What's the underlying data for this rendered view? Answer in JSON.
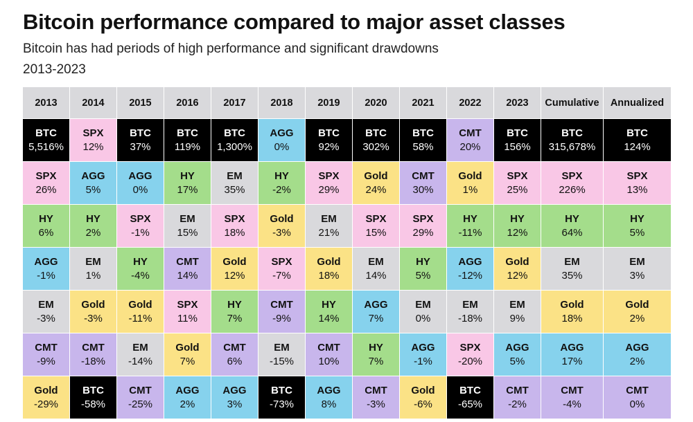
{
  "chart_data": {
    "type": "table",
    "title": "Bitcoin performance compared to major asset classes",
    "subtitle": "Bitcoin has had periods of high performance and significant drawdowns",
    "years_label": "2013-2023",
    "columns": [
      "2013",
      "2014",
      "2015",
      "2016",
      "2017",
      "2018",
      "2019",
      "2020",
      "2021",
      "2022",
      "2023",
      "Cumulative",
      "Annualized"
    ],
    "asset_colors": {
      "BTC": "#000000",
      "SPX": "#f9c7e6",
      "AGG": "#86d2ed",
      "HY": "#a4dd8b",
      "EM": "#d9d9dc",
      "Gold": "#fbe286",
      "CMT": "#c8b6ec"
    },
    "rows": [
      [
        [
          "BTC",
          "5,516%"
        ],
        [
          "SPX",
          "12%"
        ],
        [
          "BTC",
          "37%"
        ],
        [
          "BTC",
          "119%"
        ],
        [
          "BTC",
          "1,300%"
        ],
        [
          "AGG",
          "0%"
        ],
        [
          "BTC",
          "92%"
        ],
        [
          "BTC",
          "302%"
        ],
        [
          "BTC",
          "58%"
        ],
        [
          "CMT",
          "20%"
        ],
        [
          "BTC",
          "156%"
        ],
        [
          "BTC",
          "315,678%"
        ],
        [
          "BTC",
          "124%"
        ]
      ],
      [
        [
          "SPX",
          "26%"
        ],
        [
          "AGG",
          "5%"
        ],
        [
          "AGG",
          "0%"
        ],
        [
          "HY",
          "17%"
        ],
        [
          "EM",
          "35%"
        ],
        [
          "HY",
          "-2%"
        ],
        [
          "SPX",
          "29%"
        ],
        [
          "Gold",
          "24%"
        ],
        [
          "CMT",
          "30%"
        ],
        [
          "Gold",
          "1%"
        ],
        [
          "SPX",
          "25%"
        ],
        [
          "SPX",
          "226%"
        ],
        [
          "SPX",
          "13%"
        ]
      ],
      [
        [
          "HY",
          "6%"
        ],
        [
          "HY",
          "2%"
        ],
        [
          "SPX",
          "-1%"
        ],
        [
          "EM",
          "15%"
        ],
        [
          "SPX",
          "18%"
        ],
        [
          "Gold",
          "-3%"
        ],
        [
          "EM",
          "21%"
        ],
        [
          "SPX",
          "15%"
        ],
        [
          "SPX",
          "29%"
        ],
        [
          "HY",
          "-11%"
        ],
        [
          "HY",
          "12%"
        ],
        [
          "HY",
          "64%"
        ],
        [
          "HY",
          "5%"
        ]
      ],
      [
        [
          "AGG",
          "-1%"
        ],
        [
          "EM",
          "1%"
        ],
        [
          "HY",
          "-4%"
        ],
        [
          "CMT",
          "14%"
        ],
        [
          "Gold",
          "12%"
        ],
        [
          "SPX",
          "-7%"
        ],
        [
          "Gold",
          "18%"
        ],
        [
          "EM",
          "14%"
        ],
        [
          "HY",
          "5%"
        ],
        [
          "AGG",
          "-12%"
        ],
        [
          "Gold",
          "12%"
        ],
        [
          "EM",
          "35%"
        ],
        [
          "EM",
          "3%"
        ]
      ],
      [
        [
          "EM",
          "-3%"
        ],
        [
          "Gold",
          "-3%"
        ],
        [
          "Gold",
          "-11%"
        ],
        [
          "SPX",
          "11%"
        ],
        [
          "HY",
          "7%"
        ],
        [
          "CMT",
          "-9%"
        ],
        [
          "HY",
          "14%"
        ],
        [
          "AGG",
          "7%"
        ],
        [
          "EM",
          "0%"
        ],
        [
          "EM",
          "-18%"
        ],
        [
          "EM",
          "9%"
        ],
        [
          "Gold",
          "18%"
        ],
        [
          "Gold",
          "2%"
        ]
      ],
      [
        [
          "CMT",
          "-9%"
        ],
        [
          "CMT",
          "-18%"
        ],
        [
          "EM",
          "-14%"
        ],
        [
          "Gold",
          "7%"
        ],
        [
          "CMT",
          "6%"
        ],
        [
          "EM",
          "-15%"
        ],
        [
          "CMT",
          "10%"
        ],
        [
          "HY",
          "7%"
        ],
        [
          "AGG",
          "-1%"
        ],
        [
          "SPX",
          "-20%"
        ],
        [
          "AGG",
          "5%"
        ],
        [
          "AGG",
          "17%"
        ],
        [
          "AGG",
          "2%"
        ]
      ],
      [
        [
          "Gold",
          "-29%"
        ],
        [
          "BTC",
          "-58%"
        ],
        [
          "CMT",
          "-25%"
        ],
        [
          "AGG",
          "2%"
        ],
        [
          "AGG",
          "3%"
        ],
        [
          "BTC",
          "-73%"
        ],
        [
          "AGG",
          "8%"
        ],
        [
          "CMT",
          "-3%"
        ],
        [
          "Gold",
          "-6%"
        ],
        [
          "BTC",
          "-65%"
        ],
        [
          "CMT",
          "-2%"
        ],
        [
          "CMT",
          "-4%"
        ],
        [
          "CMT",
          "0%"
        ]
      ]
    ]
  }
}
